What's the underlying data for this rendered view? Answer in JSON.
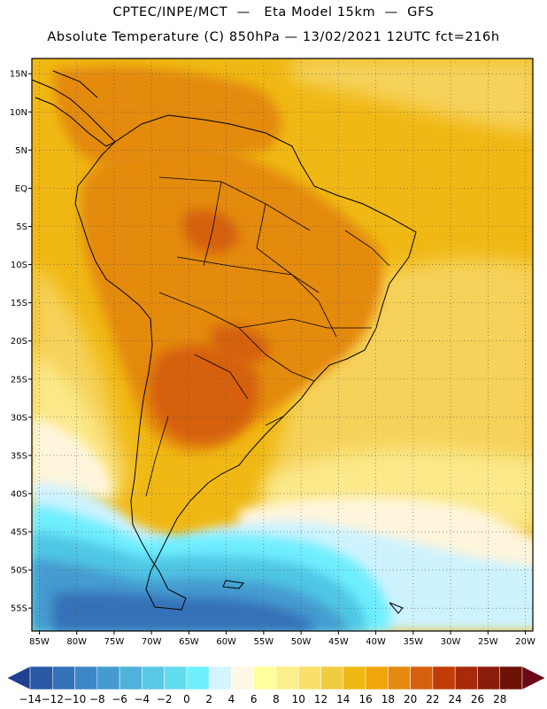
{
  "title_line1": "CPTEC/INPE/MCT  —   Eta Model 15km  —  GFS",
  "title_line2": "Absolute Temperature (C) 850hPa — 13/02/2021 12UTC fct=216h",
  "map": {
    "lon_range": [
      -86,
      -19
    ],
    "lat_range": [
      -58,
      17
    ],
    "lat_ticks": [
      {
        "v": 15,
        "label": "15N"
      },
      {
        "v": 10,
        "label": "10N"
      },
      {
        "v": 5,
        "label": "5N"
      },
      {
        "v": 0,
        "label": "EQ"
      },
      {
        "v": -5,
        "label": "5S"
      },
      {
        "v": -10,
        "label": "10S"
      },
      {
        "v": -15,
        "label": "15S"
      },
      {
        "v": -20,
        "label": "20S"
      },
      {
        "v": -25,
        "label": "25S"
      },
      {
        "v": -30,
        "label": "30S"
      },
      {
        "v": -35,
        "label": "35S"
      },
      {
        "v": -40,
        "label": "40S"
      },
      {
        "v": -45,
        "label": "45S"
      },
      {
        "v": -50,
        "label": "50S"
      },
      {
        "v": -55,
        "label": "55S"
      }
    ],
    "lon_ticks": [
      {
        "v": -85,
        "label": "85W"
      },
      {
        "v": -80,
        "label": "80W"
      },
      {
        "v": -75,
        "label": "75W"
      },
      {
        "v": -70,
        "label": "70W"
      },
      {
        "v": -65,
        "label": "65W"
      },
      {
        "v": -60,
        "label": "60W"
      },
      {
        "v": -55,
        "label": "55W"
      },
      {
        "v": -50,
        "label": "50W"
      },
      {
        "v": -45,
        "label": "45W"
      },
      {
        "v": -40,
        "label": "40W"
      },
      {
        "v": -35,
        "label": "35W"
      },
      {
        "v": -30,
        "label": "30W"
      },
      {
        "v": -25,
        "label": "25W"
      },
      {
        "v": -20,
        "label": "20W"
      }
    ]
  },
  "colorbar": {
    "labels": [
      "-14",
      "-12",
      "-10",
      "-8",
      "-6",
      "-4",
      "-2",
      "0",
      "2",
      "4",
      "6",
      "8",
      "10",
      "12",
      "14",
      "16",
      "18",
      "20",
      "22",
      "24",
      "26",
      "28"
    ],
    "colors": [
      "#1f3f8f",
      "#2a5aa6",
      "#3471b8",
      "#3d86c6",
      "#449bd0",
      "#4fb2db",
      "#59c8e4",
      "#62dcee",
      "#6ef0ff",
      "#d4f5ff",
      "#fff8e6",
      "#ffff9e",
      "#fbf08a",
      "#f8e06a",
      "#f2cc40",
      "#f0b814",
      "#eea60a",
      "#e48a10",
      "#d66010",
      "#c23c08",
      "#a82a0a",
      "#8c1c0a",
      "#6e1208",
      "#6a0818"
    ]
  },
  "colors": {
    "ocean_warm": "#f0b814",
    "ocean_mid": "#f5d060",
    "land_hot": "#d66010",
    "land_warm": "#e48a10",
    "coast_line": "#000000"
  }
}
